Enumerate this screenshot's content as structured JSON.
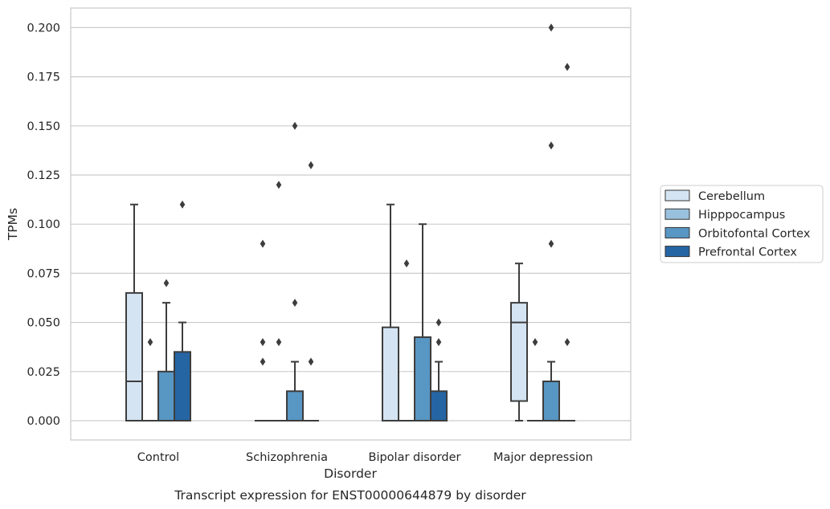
{
  "chart_data": {
    "type": "box",
    "title": "",
    "caption": "Transcript expression for ENST00000644879 by disorder",
    "xlabel": "Disorder",
    "ylabel": "TPMs",
    "ylim": [
      -0.01,
      0.21
    ],
    "yticks": [
      "0.000",
      "0.025",
      "0.050",
      "0.075",
      "0.100",
      "0.125",
      "0.150",
      "0.175",
      "0.200"
    ],
    "ytick_values": [
      0,
      0.025,
      0.05,
      0.075,
      0.1,
      0.125,
      0.15,
      0.175,
      0.2
    ],
    "grid": "horizontal",
    "legend_position": "right",
    "categories": [
      "Control",
      "Schizophrenia",
      "Bipolar disorder",
      "Major depression"
    ],
    "series": [
      {
        "name": "Cerebellum",
        "color": "#d5e4f2",
        "boxes": [
          {
            "min": 0,
            "q1": 0,
            "median": 0.02,
            "q3": 0.065,
            "max": 0.11,
            "outliers": []
          },
          {
            "min": 0,
            "q1": 0,
            "median": 0,
            "q3": 0,
            "max": 0,
            "outliers": [
              0.03,
              0.04,
              0.09
            ]
          },
          {
            "min": 0,
            "q1": 0,
            "median": 0,
            "q3": 0.0475,
            "max": 0.11,
            "outliers": []
          },
          {
            "min": 0,
            "q1": 0.01,
            "median": 0.05,
            "q3": 0.06,
            "max": 0.08,
            "outliers": []
          }
        ]
      },
      {
        "name": "Hipppocampus",
        "color": "#99c1dd",
        "boxes": [
          {
            "min": 0,
            "q1": 0,
            "median": 0,
            "q3": 0,
            "max": 0,
            "outliers": [
              0.04
            ]
          },
          {
            "min": 0,
            "q1": 0,
            "median": 0,
            "q3": 0,
            "max": 0,
            "outliers": [
              0.04,
              0.12
            ]
          },
          {
            "min": 0,
            "q1": 0,
            "median": 0,
            "q3": 0,
            "max": 0,
            "outliers": [
              0.08
            ]
          },
          {
            "min": 0,
            "q1": 0,
            "median": 0,
            "q3": 0,
            "max": 0,
            "outliers": [
              0.04
            ]
          }
        ]
      },
      {
        "name": "Orbitofontal Cortex",
        "color": "#5896c3",
        "boxes": [
          {
            "min": 0,
            "q1": 0,
            "median": 0,
            "q3": 0.025,
            "max": 0.06,
            "outliers": [
              0.07
            ]
          },
          {
            "min": 0,
            "q1": 0,
            "median": 0,
            "q3": 0.015,
            "max": 0.03,
            "outliers": [
              0.06,
              0.15
            ]
          },
          {
            "min": 0,
            "q1": 0,
            "median": 0,
            "q3": 0.0425,
            "max": 0.1,
            "outliers": []
          },
          {
            "min": 0,
            "q1": 0,
            "median": 0,
            "q3": 0.02,
            "max": 0.03,
            "outliers": [
              0.09,
              0.14,
              0.2
            ]
          }
        ]
      },
      {
        "name": "Prefrontal Cortex",
        "color": "#2565a4",
        "boxes": [
          {
            "min": 0,
            "q1": 0,
            "median": 0,
            "q3": 0.035,
            "max": 0.05,
            "outliers": [
              0.11
            ]
          },
          {
            "min": 0,
            "q1": 0,
            "median": 0,
            "q3": 0,
            "max": 0,
            "outliers": [
              0.03,
              0.13
            ]
          },
          {
            "min": 0,
            "q1": 0,
            "median": 0,
            "q3": 0.015,
            "max": 0.03,
            "outliers": [
              0.04,
              0.05
            ]
          },
          {
            "min": 0,
            "q1": 0,
            "median": 0,
            "q3": 0,
            "max": 0,
            "outliers": [
              0.04,
              0.18
            ]
          }
        ]
      }
    ]
  }
}
